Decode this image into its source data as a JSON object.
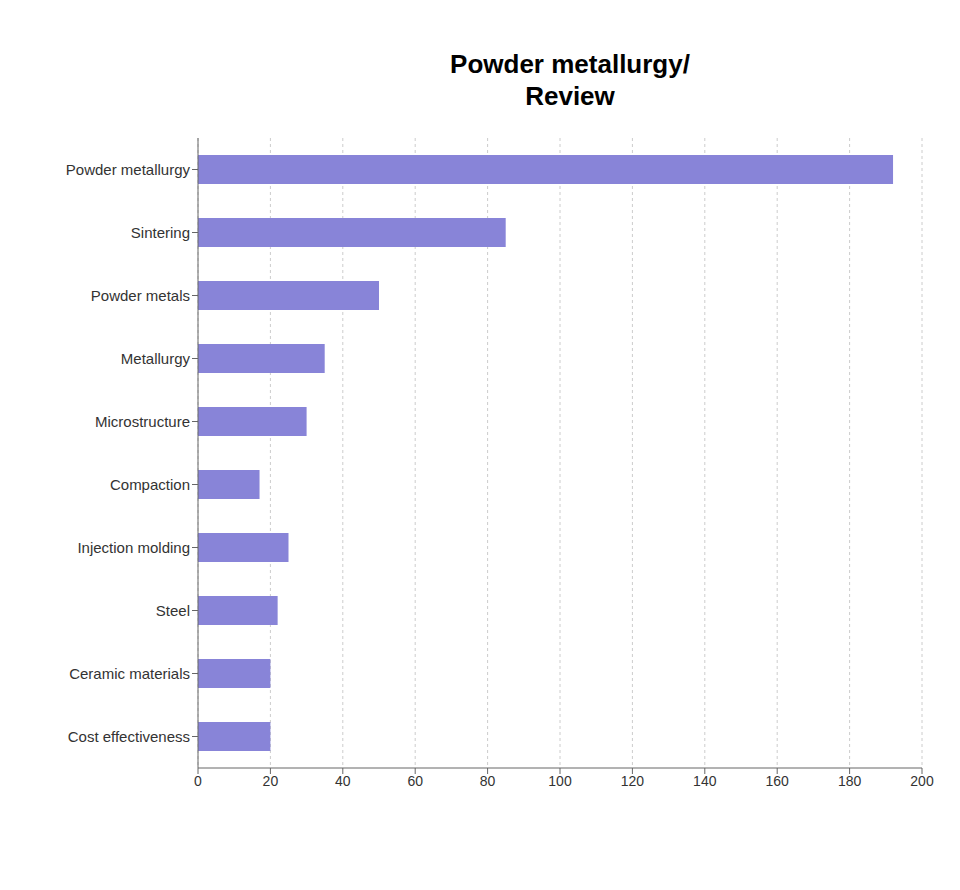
{
  "chart_data": {
    "type": "bar",
    "title": "Powder metallurgy/\nReview",
    "orientation": "horizontal",
    "categories": [
      "Cost effectiveness",
      "Ceramic materials",
      "Steel",
      "Injection molding",
      "Compaction",
      "Microstructure",
      "Metallurgy",
      "Powder metals",
      "Sintering",
      "Powder metallurgy"
    ],
    "values": [
      20,
      20,
      22,
      25,
      17,
      30,
      35,
      50,
      85,
      192
    ],
    "xlim": [
      0,
      200
    ],
    "xticks": [
      0,
      20,
      40,
      60,
      80,
      100,
      120,
      140,
      160,
      180,
      200
    ],
    "grid": true
  }
}
